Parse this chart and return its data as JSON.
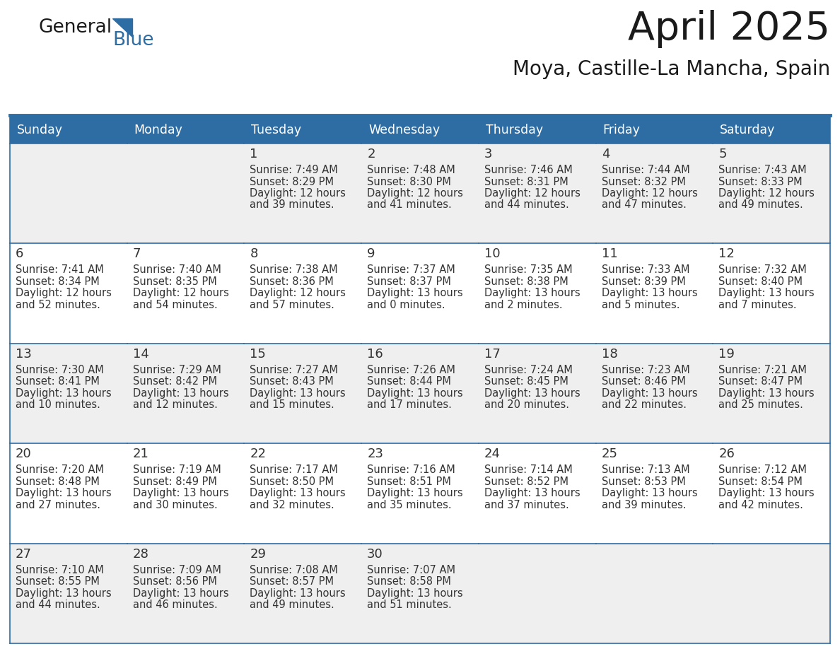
{
  "title": "April 2025",
  "subtitle": "Moya, Castille-La Mancha, Spain",
  "days_of_week": [
    "Sunday",
    "Monday",
    "Tuesday",
    "Wednesday",
    "Thursday",
    "Friday",
    "Saturday"
  ],
  "header_bg": "#2E6DA4",
  "header_text": "#FFFFFF",
  "cell_bg_odd": "#EFEFEF",
  "cell_bg_even": "#FFFFFF",
  "border_color": "#2E6DA4",
  "text_color": "#333333",
  "logo_color": "#2E6DA4",
  "weeks": [
    [
      {
        "day": "",
        "lines": []
      },
      {
        "day": "",
        "lines": []
      },
      {
        "day": "1",
        "lines": [
          "Sunrise: 7:49 AM",
          "Sunset: 8:29 PM",
          "Daylight: 12 hours",
          "and 39 minutes."
        ]
      },
      {
        "day": "2",
        "lines": [
          "Sunrise: 7:48 AM",
          "Sunset: 8:30 PM",
          "Daylight: 12 hours",
          "and 41 minutes."
        ]
      },
      {
        "day": "3",
        "lines": [
          "Sunrise: 7:46 AM",
          "Sunset: 8:31 PM",
          "Daylight: 12 hours",
          "and 44 minutes."
        ]
      },
      {
        "day": "4",
        "lines": [
          "Sunrise: 7:44 AM",
          "Sunset: 8:32 PM",
          "Daylight: 12 hours",
          "and 47 minutes."
        ]
      },
      {
        "day": "5",
        "lines": [
          "Sunrise: 7:43 AM",
          "Sunset: 8:33 PM",
          "Daylight: 12 hours",
          "and 49 minutes."
        ]
      }
    ],
    [
      {
        "day": "6",
        "lines": [
          "Sunrise: 7:41 AM",
          "Sunset: 8:34 PM",
          "Daylight: 12 hours",
          "and 52 minutes."
        ]
      },
      {
        "day": "7",
        "lines": [
          "Sunrise: 7:40 AM",
          "Sunset: 8:35 PM",
          "Daylight: 12 hours",
          "and 54 minutes."
        ]
      },
      {
        "day": "8",
        "lines": [
          "Sunrise: 7:38 AM",
          "Sunset: 8:36 PM",
          "Daylight: 12 hours",
          "and 57 minutes."
        ]
      },
      {
        "day": "9",
        "lines": [
          "Sunrise: 7:37 AM",
          "Sunset: 8:37 PM",
          "Daylight: 13 hours",
          "and 0 minutes."
        ]
      },
      {
        "day": "10",
        "lines": [
          "Sunrise: 7:35 AM",
          "Sunset: 8:38 PM",
          "Daylight: 13 hours",
          "and 2 minutes."
        ]
      },
      {
        "day": "11",
        "lines": [
          "Sunrise: 7:33 AM",
          "Sunset: 8:39 PM",
          "Daylight: 13 hours",
          "and 5 minutes."
        ]
      },
      {
        "day": "12",
        "lines": [
          "Sunrise: 7:32 AM",
          "Sunset: 8:40 PM",
          "Daylight: 13 hours",
          "and 7 minutes."
        ]
      }
    ],
    [
      {
        "day": "13",
        "lines": [
          "Sunrise: 7:30 AM",
          "Sunset: 8:41 PM",
          "Daylight: 13 hours",
          "and 10 minutes."
        ]
      },
      {
        "day": "14",
        "lines": [
          "Sunrise: 7:29 AM",
          "Sunset: 8:42 PM",
          "Daylight: 13 hours",
          "and 12 minutes."
        ]
      },
      {
        "day": "15",
        "lines": [
          "Sunrise: 7:27 AM",
          "Sunset: 8:43 PM",
          "Daylight: 13 hours",
          "and 15 minutes."
        ]
      },
      {
        "day": "16",
        "lines": [
          "Sunrise: 7:26 AM",
          "Sunset: 8:44 PM",
          "Daylight: 13 hours",
          "and 17 minutes."
        ]
      },
      {
        "day": "17",
        "lines": [
          "Sunrise: 7:24 AM",
          "Sunset: 8:45 PM",
          "Daylight: 13 hours",
          "and 20 minutes."
        ]
      },
      {
        "day": "18",
        "lines": [
          "Sunrise: 7:23 AM",
          "Sunset: 8:46 PM",
          "Daylight: 13 hours",
          "and 22 minutes."
        ]
      },
      {
        "day": "19",
        "lines": [
          "Sunrise: 7:21 AM",
          "Sunset: 8:47 PM",
          "Daylight: 13 hours",
          "and 25 minutes."
        ]
      }
    ],
    [
      {
        "day": "20",
        "lines": [
          "Sunrise: 7:20 AM",
          "Sunset: 8:48 PM",
          "Daylight: 13 hours",
          "and 27 minutes."
        ]
      },
      {
        "day": "21",
        "lines": [
          "Sunrise: 7:19 AM",
          "Sunset: 8:49 PM",
          "Daylight: 13 hours",
          "and 30 minutes."
        ]
      },
      {
        "day": "22",
        "lines": [
          "Sunrise: 7:17 AM",
          "Sunset: 8:50 PM",
          "Daylight: 13 hours",
          "and 32 minutes."
        ]
      },
      {
        "day": "23",
        "lines": [
          "Sunrise: 7:16 AM",
          "Sunset: 8:51 PM",
          "Daylight: 13 hours",
          "and 35 minutes."
        ]
      },
      {
        "day": "24",
        "lines": [
          "Sunrise: 7:14 AM",
          "Sunset: 8:52 PM",
          "Daylight: 13 hours",
          "and 37 minutes."
        ]
      },
      {
        "day": "25",
        "lines": [
          "Sunrise: 7:13 AM",
          "Sunset: 8:53 PM",
          "Daylight: 13 hours",
          "and 39 minutes."
        ]
      },
      {
        "day": "26",
        "lines": [
          "Sunrise: 7:12 AM",
          "Sunset: 8:54 PM",
          "Daylight: 13 hours",
          "and 42 minutes."
        ]
      }
    ],
    [
      {
        "day": "27",
        "lines": [
          "Sunrise: 7:10 AM",
          "Sunset: 8:55 PM",
          "Daylight: 13 hours",
          "and 44 minutes."
        ]
      },
      {
        "day": "28",
        "lines": [
          "Sunrise: 7:09 AM",
          "Sunset: 8:56 PM",
          "Daylight: 13 hours",
          "and 46 minutes."
        ]
      },
      {
        "day": "29",
        "lines": [
          "Sunrise: 7:08 AM",
          "Sunset: 8:57 PM",
          "Daylight: 13 hours",
          "and 49 minutes."
        ]
      },
      {
        "day": "30",
        "lines": [
          "Sunrise: 7:07 AM",
          "Sunset: 8:58 PM",
          "Daylight: 13 hours",
          "and 51 minutes."
        ]
      },
      {
        "day": "",
        "lines": []
      },
      {
        "day": "",
        "lines": []
      },
      {
        "day": "",
        "lines": []
      }
    ]
  ]
}
